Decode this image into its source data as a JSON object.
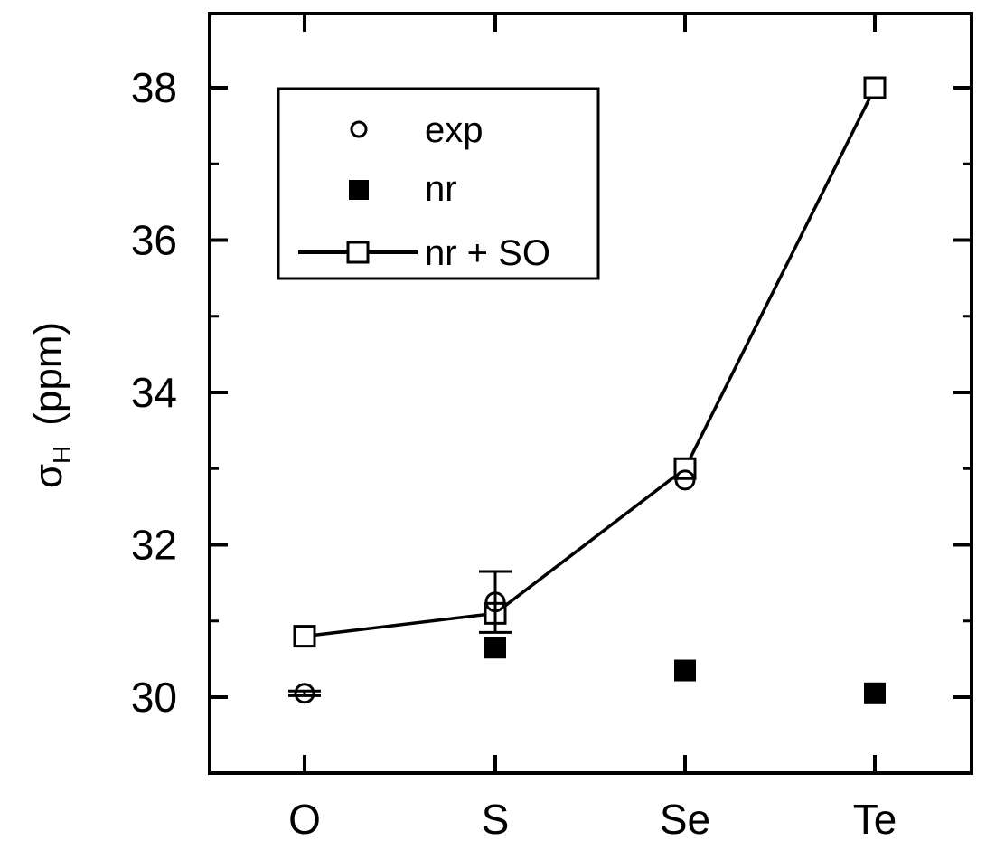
{
  "chart_data": {
    "type": "scatter",
    "categories": [
      "O",
      "S",
      "Se",
      "Te"
    ],
    "ylabel": {
      "symbol": "σ",
      "subscript": "H",
      "unit": "(ppm)"
    },
    "xlabel": "",
    "ylim": [
      29,
      39
    ],
    "yticks": [
      30,
      32,
      34,
      36,
      38
    ],
    "ytick_labels": [
      "30",
      "32",
      "34",
      "36",
      "38"
    ],
    "minor_yticks": [
      31,
      33,
      35,
      37
    ],
    "grid": false,
    "legend_position": "top-left",
    "series": [
      {
        "name": "exp",
        "marker": "open-circle",
        "line": false,
        "points": [
          {
            "category": "O",
            "value": 30.05,
            "error": 0.03
          },
          {
            "category": "S",
            "value": 31.25,
            "error": 0.4
          },
          {
            "category": "Se",
            "value": 32.85,
            "error": null
          }
        ]
      },
      {
        "name": "nr",
        "marker": "filled-square",
        "line": false,
        "points": [
          {
            "category": "O",
            "value": 30.8
          },
          {
            "category": "S",
            "value": 30.65
          },
          {
            "category": "Se",
            "value": 30.35
          },
          {
            "category": "Te",
            "value": 30.05
          }
        ]
      },
      {
        "name": "nr + SO",
        "marker": "open-square",
        "line": true,
        "points": [
          {
            "category": "O",
            "value": 30.8
          },
          {
            "category": "S",
            "value": 31.1
          },
          {
            "category": "Se",
            "value": 33.0
          },
          {
            "category": "Te",
            "value": 38.0
          }
        ]
      }
    ]
  }
}
